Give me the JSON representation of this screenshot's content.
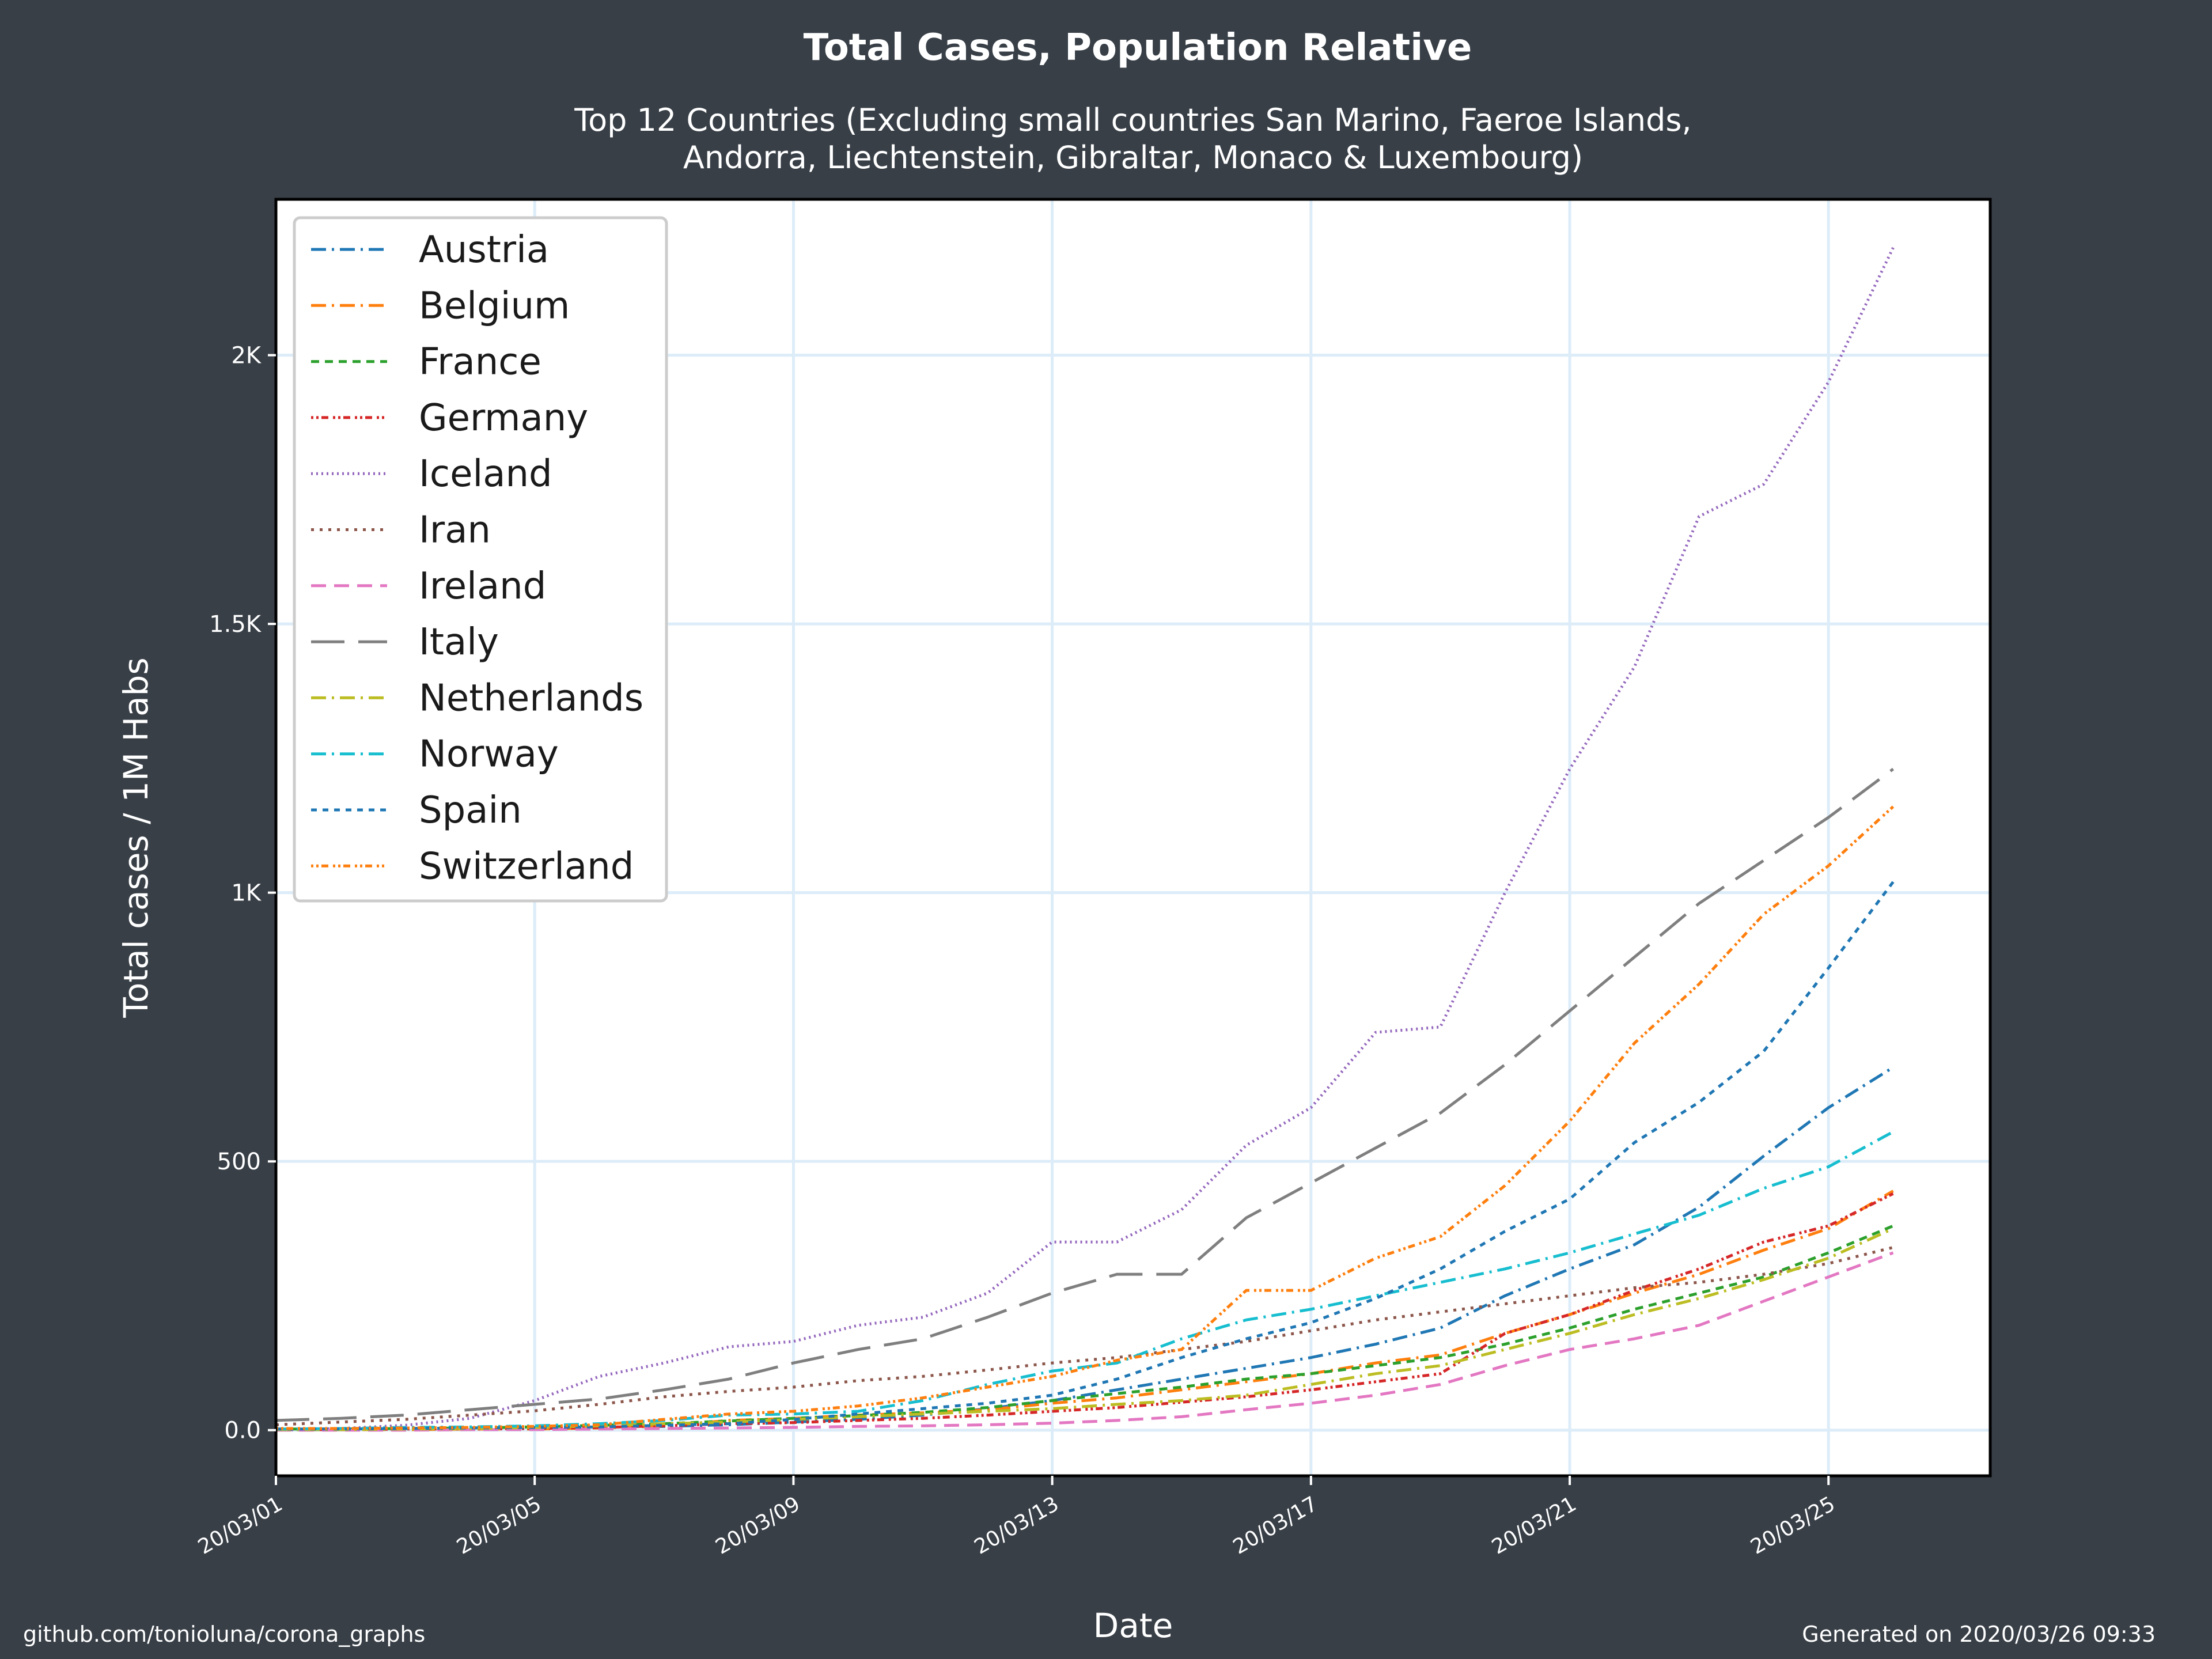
{
  "footer": {
    "source": "github.com/tonioluna/corona_graphs",
    "generated": "Generated on 2020/03/26 09:33"
  },
  "chart_data": {
    "type": "line",
    "title": "Total Cases, Population Relative",
    "subtitle_lines": [
      "Top 12 Countries (Excluding small countries San Marino, Faeroe Islands,",
      "Andorra, Liechtenstein, Gibraltar, Monaco & Luxembourg)"
    ],
    "xlabel": "Date",
    "ylabel": "Total cases / 1M Habs",
    "x": [
      "20/03/01",
      "20/03/02",
      "20/03/03",
      "20/03/04",
      "20/03/05",
      "20/03/06",
      "20/03/07",
      "20/03/08",
      "20/03/09",
      "20/03/10",
      "20/03/11",
      "20/03/12",
      "20/03/13",
      "20/03/14",
      "20/03/15",
      "20/03/16",
      "20/03/17",
      "20/03/18",
      "20/03/19",
      "20/03/20",
      "20/03/21",
      "20/03/22",
      "20/03/23",
      "20/03/24",
      "20/03/25",
      "20/03/26"
    ],
    "x_ticks": [
      "20/03/01",
      "20/03/05",
      "20/03/09",
      "20/03/13",
      "20/03/17",
      "20/03/21",
      "20/03/25"
    ],
    "y_ticks": [
      {
        "value": 0,
        "label": "0.0"
      },
      {
        "value": 500,
        "label": "500"
      },
      {
        "value": 1000,
        "label": "1K"
      },
      {
        "value": 1500,
        "label": "1.5K"
      },
      {
        "value": 2000,
        "label": "2K"
      }
    ],
    "xlim": [
      "20/03/01",
      "20/03/27"
    ],
    "ylim": [
      -85,
      2290
    ],
    "grid": true,
    "legend": "top-left",
    "series": [
      {
        "name": "Austria",
        "color": "#1f77b4",
        "dash": "26,10,4,10",
        "values": [
          1,
          1,
          2,
          3,
          4,
          5,
          7,
          10,
          15,
          20,
          28,
          40,
          55,
          75,
          95,
          115,
          135,
          160,
          190,
          250,
          300,
          345,
          415,
          510,
          600,
          675
        ]
      },
      {
        "name": "Belgium",
        "color": "#ff7f0e",
        "dash": "26,10,4,10",
        "values": [
          1,
          1,
          1,
          2,
          2,
          4,
          8,
          18,
          22,
          28,
          32,
          38,
          50,
          60,
          75,
          90,
          105,
          125,
          140,
          180,
          215,
          255,
          290,
          335,
          375,
          445
        ]
      },
      {
        "name": "France",
        "color": "#2ca02c",
        "dash": "14,10",
        "values": [
          2,
          2,
          3,
          4,
          6,
          9,
          12,
          17,
          22,
          27,
          33,
          42,
          55,
          68,
          80,
          95,
          105,
          120,
          135,
          160,
          190,
          225,
          255,
          285,
          330,
          380
        ]
      },
      {
        "name": "Germany",
        "color": "#d62728",
        "dash": "4,5,4,5,12,8",
        "values": [
          1,
          1,
          2,
          2,
          3,
          5,
          8,
          12,
          14,
          18,
          22,
          28,
          35,
          42,
          52,
          62,
          75,
          90,
          105,
          180,
          215,
          260,
          300,
          350,
          380,
          440
        ]
      },
      {
        "name": "Iceland",
        "color": "#9467bd",
        "dash": "3,6",
        "values": [
          0,
          3,
          9,
          22,
          55,
          100,
          125,
          155,
          165,
          195,
          210,
          255,
          350,
          350,
          410,
          530,
          600,
          740,
          750,
          1000,
          1230,
          1420,
          1700,
          1760,
          1950,
          2200
        ]
      },
      {
        "name": "Iran",
        "color": "#8c564b",
        "dash": "5,10",
        "values": [
          10,
          15,
          20,
          28,
          36,
          48,
          62,
          72,
          80,
          92,
          100,
          112,
          125,
          135,
          150,
          165,
          185,
          205,
          220,
          235,
          250,
          265,
          275,
          290,
          310,
          340
        ]
      },
      {
        "name": "Ireland",
        "color": "#e377c2",
        "dash": "26,14",
        "values": [
          0,
          0,
          0,
          1,
          1,
          2,
          3,
          4,
          5,
          7,
          8,
          10,
          13,
          18,
          25,
          38,
          50,
          65,
          85,
          120,
          150,
          170,
          195,
          240,
          285,
          330
        ]
      },
      {
        "name": "Italy",
        "color": "#7f7f7f",
        "dash": "58,24",
        "values": [
          18,
          22,
          28,
          38,
          48,
          58,
          75,
          95,
          125,
          150,
          170,
          210,
          255,
          290,
          290,
          395,
          460,
          525,
          590,
          680,
          780,
          880,
          980,
          1060,
          1140,
          1230
        ]
      },
      {
        "name": "Netherlands",
        "color": "#bcbd22",
        "dash": "26,10,4,10",
        "values": [
          1,
          1,
          2,
          3,
          5,
          8,
          12,
          15,
          20,
          25,
          30,
          35,
          40,
          48,
          55,
          65,
          85,
          105,
          120,
          150,
          180,
          215,
          245,
          280,
          320,
          375
        ]
      },
      {
        "name": "Norway",
        "color": "#17becf",
        "dash": "26,10,4,10",
        "values": [
          2,
          3,
          5,
          6,
          8,
          12,
          18,
          28,
          30,
          35,
          55,
          85,
          110,
          125,
          170,
          205,
          225,
          250,
          275,
          300,
          330,
          365,
          400,
          450,
          490,
          555
        ]
      },
      {
        "name": "Spain",
        "color": "#1f77b4",
        "dash": "10,10",
        "values": [
          2,
          2,
          3,
          4,
          5,
          6,
          9,
          12,
          20,
          30,
          40,
          50,
          65,
          95,
          135,
          170,
          200,
          245,
          300,
          370,
          430,
          535,
          610,
          705,
          860,
          1020
        ]
      },
      {
        "name": "Switzerland",
        "color": "#ff7f0e",
        "dash": "4,5,4,5,12,8",
        "values": [
          3,
          3,
          4,
          5,
          7,
          10,
          20,
          30,
          35,
          45,
          60,
          80,
          100,
          130,
          150,
          260,
          260,
          320,
          360,
          455,
          575,
          720,
          830,
          960,
          1050,
          1160
        ]
      }
    ]
  }
}
